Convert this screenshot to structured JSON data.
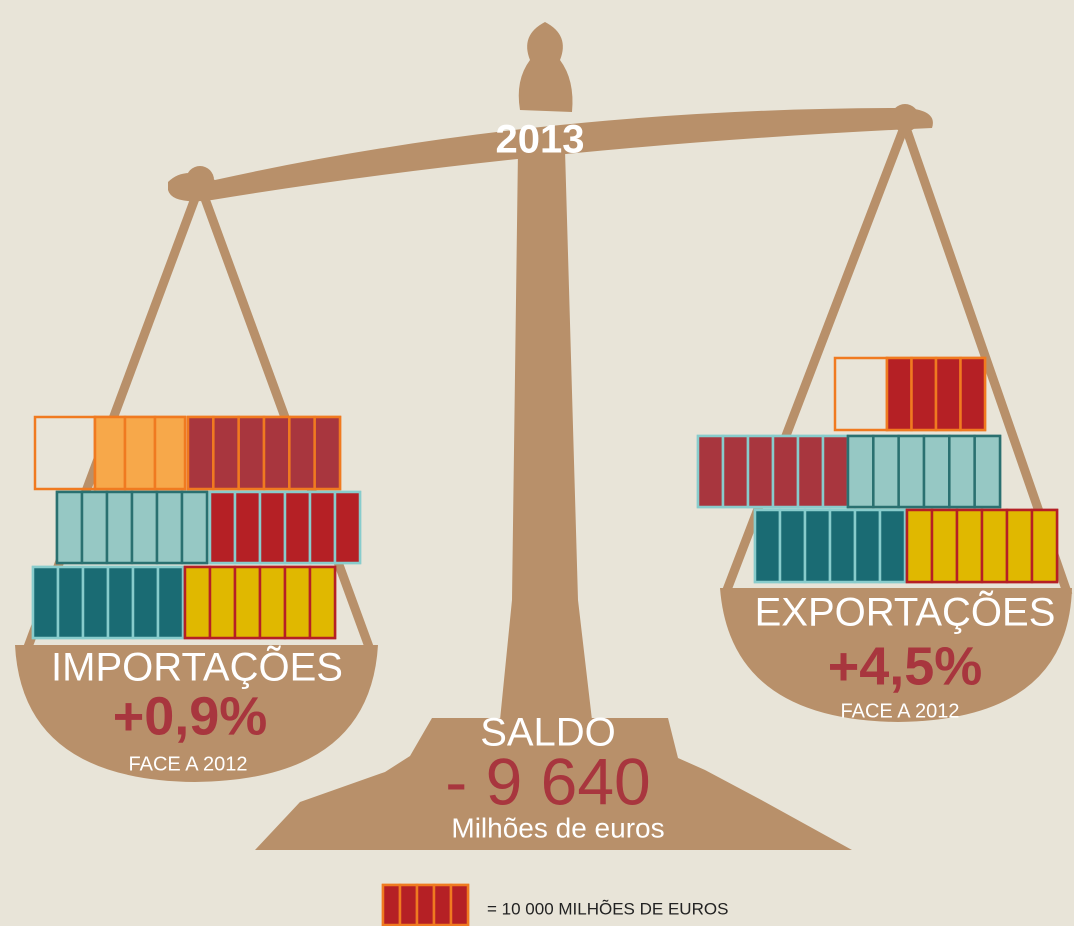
{
  "year": "2013",
  "imports": {
    "label": "IMPORTAÇÕES",
    "change": "+0,9%",
    "note": "FACE A 2012"
  },
  "exports": {
    "label": "EXPORTAÇÕES",
    "change": "+4,5%",
    "note": "FACE A 2012"
  },
  "balance": {
    "label": "SALDO",
    "value": "- 9 640",
    "unit": "Milhões de euros"
  },
  "legend": "= 10 000 MILHÕES DE EUROS"
}
